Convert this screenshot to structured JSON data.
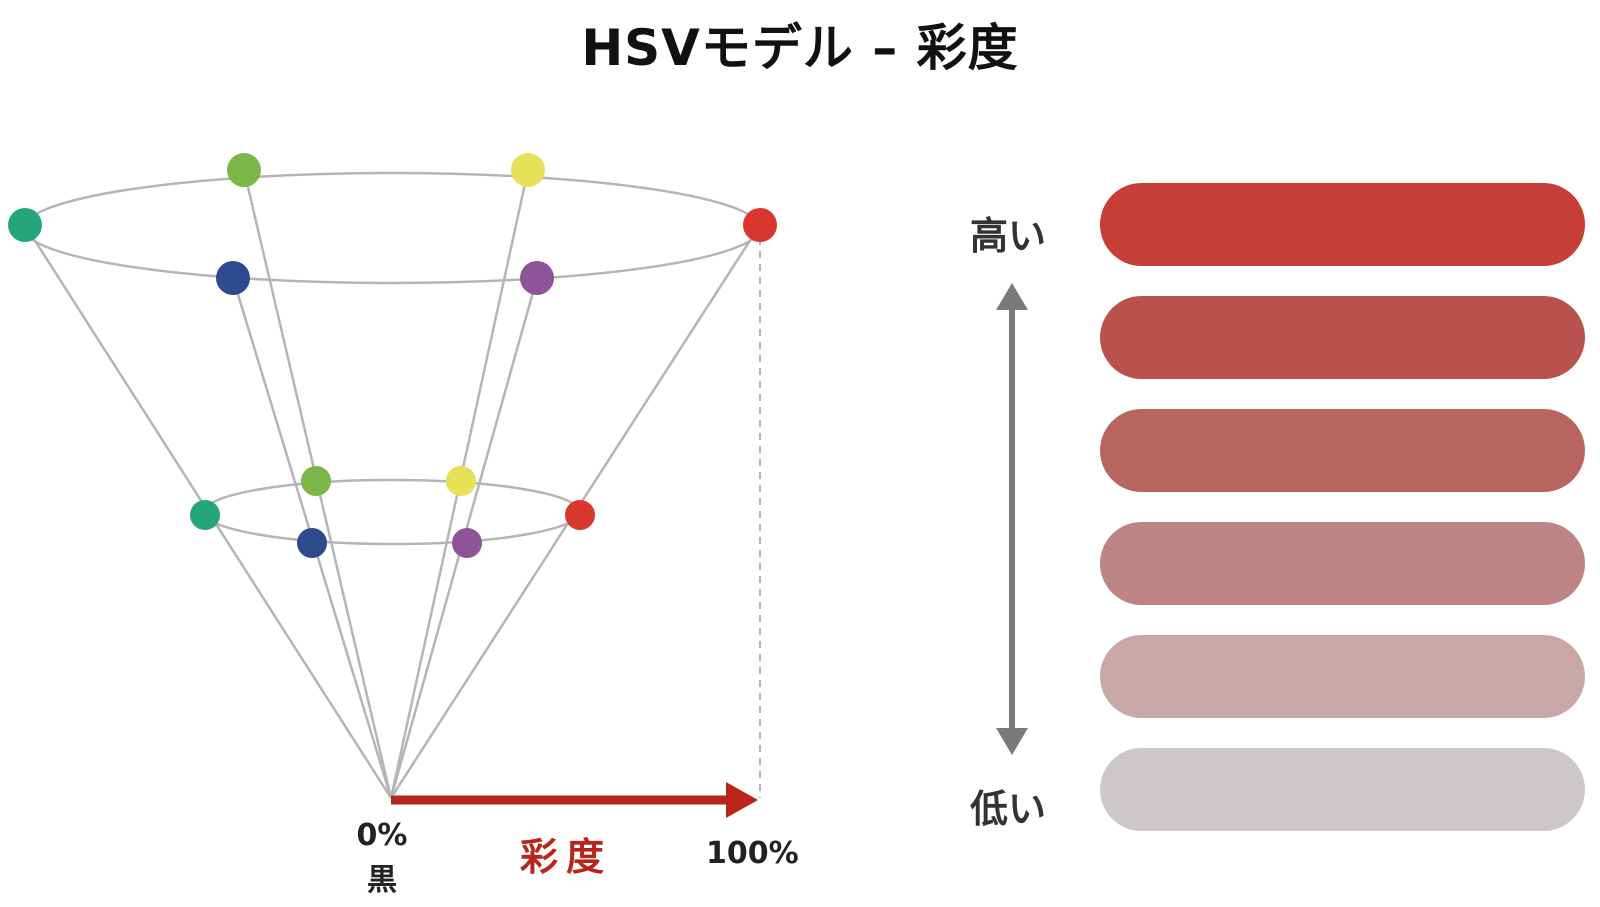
{
  "title": "HSVモデル – 彩度",
  "cone": {
    "axis_label": "彩度",
    "start_label": "0%",
    "start_sublabel": "黒",
    "end_label": "100%",
    "line_color": "#b5b5b5",
    "axis_color": "#b8261b",
    "ring_colors": [
      "#26a47a",
      "#7ab648",
      "#e6e156",
      "#d9372e",
      "#8e5399",
      "#2d4a8f"
    ]
  },
  "scale": {
    "high_label": "高い",
    "low_label": "低い",
    "arrow_color": "#7a7a7a",
    "swatches": [
      "#c53e37",
      "#b9514d",
      "#b86562",
      "#bd8483",
      "#c8a8a6",
      "#cdc7c7"
    ]
  }
}
